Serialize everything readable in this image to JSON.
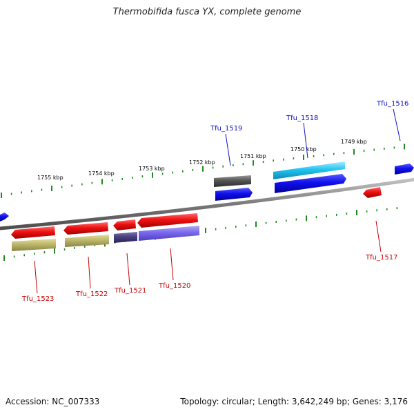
{
  "title": "Thermobifida fusca YX, complete genome",
  "footer": {
    "accession": "Accession: NC_007333",
    "summary": "Topology: circular; Length: 3,642,249 bp; Genes: 3,176"
  },
  "colors": {
    "backbone": "#8a8a8a",
    "tick": "#1f8a1f",
    "label_forward": "#1010c8",
    "label_reverse": "#c80000"
  },
  "scale_labels": [
    {
      "kbp": 1755,
      "text": "1755 kbp"
    },
    {
      "kbp": 1754,
      "text": "1754 kbp"
    },
    {
      "kbp": 1753,
      "text": "1753 kbp"
    },
    {
      "kbp": 1752,
      "text": "1752 kbp"
    },
    {
      "kbp": 1751,
      "text": "1751 kbp"
    },
    {
      "kbp": 1750,
      "text": "1750 kbp"
    },
    {
      "kbp": 1749,
      "text": "1749 kbp"
    }
  ],
  "gene_labels": [
    {
      "text": "Tfu_1516",
      "strand": "forward"
    },
    {
      "text": "Tfu_1518",
      "strand": "forward"
    },
    {
      "text": "Tfu_1519",
      "strand": "forward"
    },
    {
      "text": "Tfu_1517",
      "strand": "reverse"
    },
    {
      "text": "Tfu_1520",
      "strand": "reverse"
    },
    {
      "text": "Tfu_1521",
      "strand": "reverse"
    },
    {
      "text": "Tfu_1522",
      "strand": "reverse"
    },
    {
      "text": "Tfu_1523",
      "strand": "reverse"
    }
  ]
}
